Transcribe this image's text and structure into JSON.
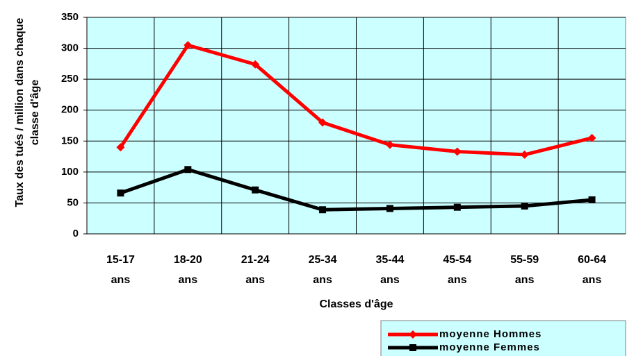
{
  "chart_data": {
    "type": "line",
    "x_label": "Classes d'âge",
    "y_label": "Taux des tués / million dans chaque classe d'âge",
    "categories": [
      "15-17 ans",
      "18-20 ans",
      "21-24 ans",
      "25-34 ans",
      "35-44 ans",
      "45-54 ans",
      "55-59 ans",
      "60-64 ans"
    ],
    "series": [
      {
        "name": "moyenne Hommes",
        "color": "#ff0000",
        "marker": "diamond",
        "values": [
          140,
          305,
          274,
          180,
          144,
          133,
          128,
          155
        ]
      },
      {
        "name": "moyenne Femmes",
        "color": "#000000",
        "marker": "square",
        "values": [
          66,
          104,
          71,
          39,
          41,
          43,
          45,
          55
        ]
      }
    ],
    "ylim": [
      0,
      350
    ],
    "yticks": [
      0,
      50,
      100,
      150,
      200,
      250,
      300,
      350
    ],
    "grid": true,
    "legend": "bottom-right"
  }
}
